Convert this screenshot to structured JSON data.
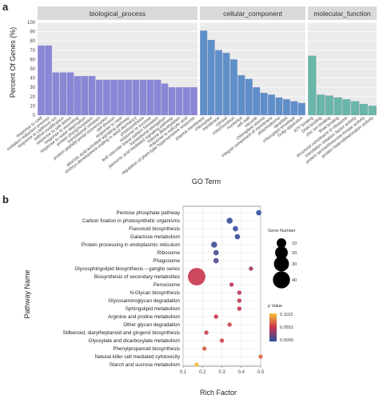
{
  "chart_data": [
    {
      "type": "bar",
      "panel_label": "a",
      "xlabel": "GO Term",
      "ylabel": "Percent Of Genes (%)",
      "ylim": [
        0,
        100
      ],
      "yticks": [
        0,
        10,
        20,
        30,
        40,
        50,
        60,
        70,
        80,
        90,
        100
      ],
      "grid": true,
      "facets": [
        {
          "name": "biological_process",
          "color": "#8b86d6",
          "categories": [
            "response to cold",
            "oxidation-reduction process",
            "response to cadmium ion",
            "mRNA modification",
            "response to salt stress",
            "response to wounding",
            "response to water deprivation",
            "protein phosphorylation",
            "translational initiation",
            "protein peptidyl-prolyl isomerization",
            "cell division",
            "response to heat",
            "abscisic acid-activated signaling pathway",
            "embryo development ending in seed dormancy",
            "photosynthesis",
            "response to sucrose",
            "leaf vascular tissue pattern formation",
            "translational elongation",
            "jasmonic acid mediated signaling pathway",
            "histone deacetylation",
            "response to salicylic acid",
            "regulation of plant-type hypersensitive response"
          ],
          "values": [
            75,
            75,
            46,
            46,
            46,
            42,
            42,
            42,
            38,
            38,
            38,
            38,
            38,
            38,
            38,
            38,
            38,
            34,
            30,
            30,
            30,
            30
          ]
        },
        {
          "name": "cellular_component",
          "color": "#5e8fc8",
          "categories": [
            "plasma membrane",
            "chloroplast",
            "membrane",
            "cytosol",
            "mitochondrion",
            "nucleolus",
            "cell wall",
            "vacuole",
            "chloroplast stroma",
            "integral component of membrane",
            "plasmodesma",
            "apoplast",
            "chloroplast envelope",
            "Golgi apparatus"
          ],
          "values": [
            91,
            81,
            70,
            67,
            60,
            43,
            39,
            30,
            24,
            22,
            19,
            17,
            15,
            13
          ]
        },
        {
          "name": "molecular_function",
          "color": "#6ab6a8",
          "categories": [
            "ATP binding",
            "DNA binding",
            "zinc ion binding",
            "RNA binding",
            "structural constituent of ribosome",
            "translation initiation factor activity",
            "protein serine/threonine kinase activity",
            "protein heterodimerization activity"
          ],
          "values": [
            64,
            22,
            21,
            19,
            17,
            15,
            12,
            10
          ]
        }
      ]
    },
    {
      "type": "scatter",
      "panel_label": "b",
      "xlabel": "Rich Factor",
      "ylabel": "Pathway Name",
      "xlim": [
        0.1,
        0.5
      ],
      "xticks": [
        "0.1",
        "0.2",
        "0.3",
        "0.4",
        "0.5"
      ],
      "grid": true,
      "size_legend": {
        "title": "Gene Number",
        "values": [
          "10",
          "20",
          "30",
          "40"
        ],
        "sizes": [
          10,
          20,
          30,
          40
        ]
      },
      "color_legend": {
        "title": "p Value",
        "labels": [
          "0.1102",
          "0.0551",
          "0.0000"
        ],
        "low_color": "#2b4fa0",
        "mid_color": "#c8334d",
        "high_color": "#f5c03a",
        "max": 0.1102
      },
      "points": [
        {
          "pathway": "Pentose phosphate pathway",
          "x": 0.49,
          "genes": 2,
          "p": 0.0
        },
        {
          "pathway": "Carbon fixation in photosynthetic organisms",
          "x": 0.34,
          "genes": 3,
          "p": 0.005
        },
        {
          "pathway": "Flavonoid biosynthesis",
          "x": 0.37,
          "genes": 2,
          "p": 0.003
        },
        {
          "pathway": "Galactose metabolism",
          "x": 0.38,
          "genes": 2,
          "p": 0.004
        },
        {
          "pathway": "Protein processing in endoplasmic reticulum",
          "x": 0.26,
          "genes": 3,
          "p": 0.006
        },
        {
          "pathway": "Ribosome",
          "x": 0.27,
          "genes": 2,
          "p": 0.01
        },
        {
          "pathway": "Phagosome",
          "x": 0.27,
          "genes": 2,
          "p": 0.012
        },
        {
          "pathway": "Glycosphingolipid biosynthesis – ganglio series",
          "x": 0.45,
          "genes": 1,
          "p": 0.04
        },
        {
          "pathway": "Biosynthesis of secondary metabolites",
          "x": 0.17,
          "genes": 42,
          "p": 0.055
        },
        {
          "pathway": "Peroxisome",
          "x": 0.35,
          "genes": 1,
          "p": 0.05
        },
        {
          "pathway": "N-Glycan biosynthesis",
          "x": 0.39,
          "genes": 1,
          "p": 0.05
        },
        {
          "pathway": "Glycosaminoglycan degradation",
          "x": 0.39,
          "genes": 1,
          "p": 0.053
        },
        {
          "pathway": "Sphingolipid metabolism",
          "x": 0.39,
          "genes": 1,
          "p": 0.055
        },
        {
          "pathway": "Arginine and proline metabolism",
          "x": 0.27,
          "genes": 1,
          "p": 0.055
        },
        {
          "pathway": "Other glycan degradation",
          "x": 0.34,
          "genes": 1,
          "p": 0.06
        },
        {
          "pathway": "Stilbenoid, diarylheptanoid and gingerol biosynthesis",
          "x": 0.22,
          "genes": 1,
          "p": 0.06
        },
        {
          "pathway": "Glyoxylate and dicarboxylate metabolism",
          "x": 0.3,
          "genes": 1,
          "p": 0.06
        },
        {
          "pathway": "Phenylpropanoid biosynthesis",
          "x": 0.21,
          "genes": 1,
          "p": 0.07
        },
        {
          "pathway": "Natural killer cell mediated cytotoxicity",
          "x": 0.5,
          "genes": 1,
          "p": 0.075
        },
        {
          "pathway": "Starch and sucrose metabolism",
          "x": 0.17,
          "genes": 1,
          "p": 0.11
        }
      ]
    }
  ]
}
